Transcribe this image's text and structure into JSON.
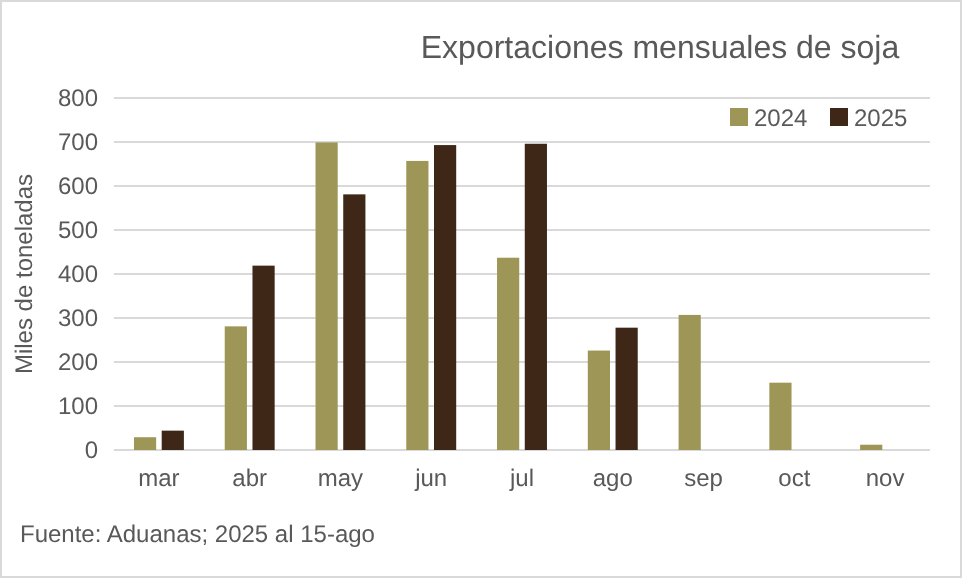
{
  "chart_data": {
    "type": "bar",
    "title": "Exportaciones mensuales de soja",
    "ylabel": "Miles de toneladas",
    "categories": [
      "mar",
      "abr",
      "may",
      "jun",
      "jul",
      "ago",
      "sep",
      "oct",
      "nov"
    ],
    "series": [
      {
        "name": "2024",
        "color": "#9e9656",
        "values": [
          29,
          281,
          699,
          657,
          437,
          226,
          307,
          153,
          12
        ]
      },
      {
        "name": "2025",
        "color": "#3f2718",
        "values": [
          44,
          419,
          581,
          693,
          696,
          278,
          null,
          null,
          null
        ]
      }
    ],
    "ylim": [
      0,
      800
    ],
    "yticks": [
      0,
      100,
      200,
      300,
      400,
      500,
      600,
      700,
      800
    ],
    "grid": "y",
    "legend": "top right",
    "annotations": [
      "Fuente: Aduanas; 2025 al 15-ago"
    ]
  }
}
